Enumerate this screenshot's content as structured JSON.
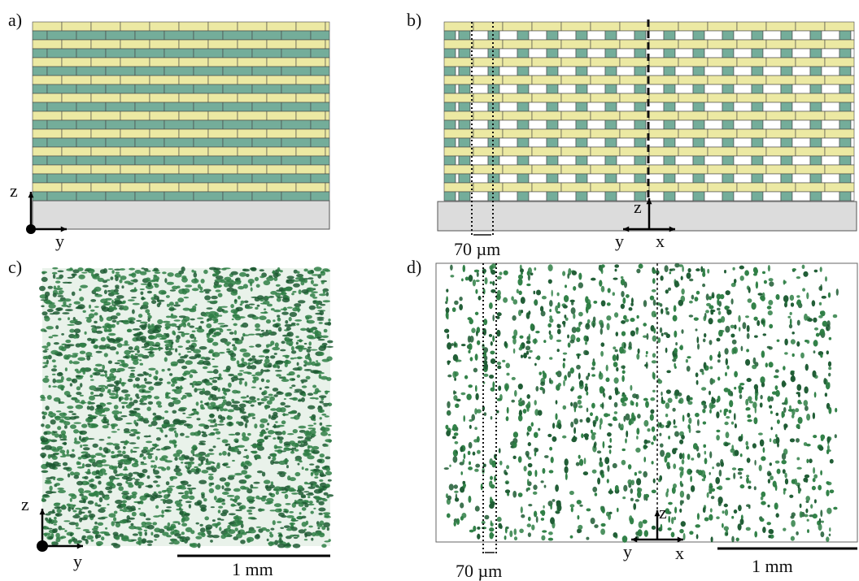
{
  "panels": {
    "a": {
      "label": "a)",
      "axis_vertical": "z",
      "axis_horizontal": "y"
    },
    "b": {
      "label": "b)",
      "axis_vertical": "z",
      "axis_left": "y",
      "axis_right": "x",
      "spacing_label": "70 µm"
    },
    "c": {
      "label": "c)",
      "axis_vertical": "z",
      "axis_horizontal": "y",
      "scale_label": "1 mm"
    },
    "d": {
      "label": "d)",
      "axis_vertical": "z",
      "axis_left": "y",
      "axis_right": "x",
      "spacing_label": "70 µm",
      "scale_label": "1 mm"
    }
  },
  "colors": {
    "brick_yellow": "#ece9a3",
    "brick_teal": "#74ad9a",
    "substrate": "#dcdcdc",
    "pore_green": "#2f7f45",
    "pore_dark": "#1d5a32"
  }
}
